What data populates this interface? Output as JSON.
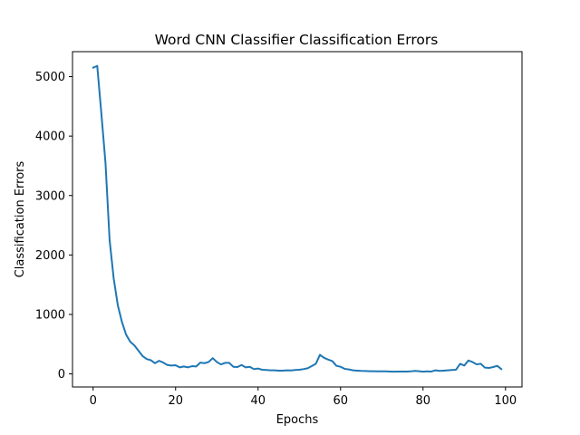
{
  "chart_data": {
    "type": "line",
    "title": "Word CNN Classifier Classification Errors",
    "xlabel": "Epochs",
    "ylabel": "Classification Errors",
    "xlim": [
      -5,
      104
    ],
    "ylim": [
      -220,
      5420
    ],
    "xticks": [
      0,
      20,
      40,
      60,
      80,
      100
    ],
    "yticks": [
      0,
      1000,
      2000,
      3000,
      4000,
      5000
    ],
    "grid": false,
    "color": "#1f77b4",
    "series": [
      {
        "x": [
          0,
          1,
          2,
          3,
          4,
          5,
          6,
          7,
          8,
          9,
          10,
          11,
          12,
          13,
          14,
          15,
          16,
          17,
          18,
          19,
          20,
          21,
          22,
          23,
          24,
          25,
          26,
          27,
          28,
          29,
          30,
          31,
          32,
          33,
          34,
          35,
          36,
          37,
          38,
          39,
          40,
          41,
          42,
          43,
          44,
          45,
          46,
          47,
          48,
          49,
          50,
          51,
          52,
          53,
          54,
          55,
          56,
          57,
          58,
          59,
          60,
          61,
          62,
          63,
          64,
          65,
          66,
          67,
          68,
          69,
          70,
          71,
          72,
          73,
          74,
          75,
          76,
          77,
          78,
          79,
          80,
          81,
          82,
          83,
          84,
          85,
          86,
          87,
          88,
          89,
          90,
          91,
          92,
          93,
          94,
          95,
          96,
          97,
          98,
          99
        ],
        "y": [
          5150,
          5180,
          4380,
          3550,
          2250,
          1600,
          1150,
          870,
          660,
          540,
          480,
          390,
          300,
          250,
          230,
          180,
          220,
          190,
          150,
          140,
          145,
          110,
          125,
          110,
          130,
          125,
          190,
          180,
          200,
          265,
          200,
          160,
          185,
          185,
          120,
          115,
          150,
          110,
          120,
          80,
          90,
          70,
          65,
          60,
          60,
          55,
          55,
          60,
          58,
          65,
          70,
          80,
          95,
          130,
          170,
          320,
          270,
          240,
          215,
          135,
          120,
          85,
          75,
          60,
          55,
          50,
          48,
          45,
          45,
          42,
          42,
          42,
          40,
          38,
          40,
          40,
          40,
          42,
          50,
          45,
          38,
          42,
          40,
          60,
          50,
          55,
          60,
          65,
          70,
          170,
          140,
          225,
          200,
          160,
          170,
          105,
          100,
          115,
          135,
          80
        ]
      }
    ]
  }
}
